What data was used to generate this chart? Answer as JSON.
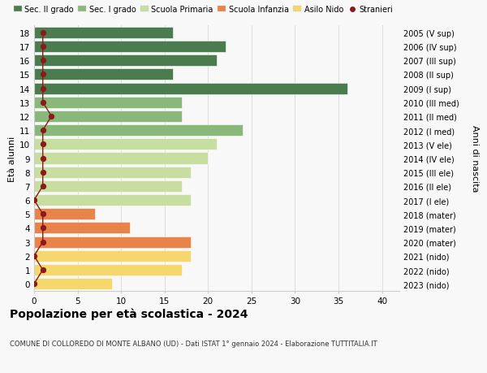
{
  "ages": [
    0,
    1,
    2,
    3,
    4,
    5,
    6,
    7,
    8,
    9,
    10,
    11,
    12,
    13,
    14,
    15,
    16,
    17,
    18
  ],
  "values": [
    9,
    17,
    18,
    18,
    11,
    7,
    18,
    17,
    18,
    20,
    21,
    24,
    17,
    17,
    36,
    16,
    21,
    22,
    16
  ],
  "stranieri": [
    0,
    1,
    0,
    1,
    1,
    1,
    0,
    1,
    1,
    1,
    1,
    1,
    2,
    1,
    1,
    1,
    1,
    1,
    1
  ],
  "bar_colors": [
    "#f5d76e",
    "#f5d76e",
    "#f5d76e",
    "#e8844a",
    "#e8844a",
    "#e8844a",
    "#c8dda0",
    "#c8dda0",
    "#c8dda0",
    "#c8dda0",
    "#c8dda0",
    "#8ab87a",
    "#8ab87a",
    "#8ab87a",
    "#4a7c4e",
    "#4a7c4e",
    "#4a7c4e",
    "#4a7c4e",
    "#4a7c4e"
  ],
  "right_labels": [
    "2023 (nido)",
    "2022 (nido)",
    "2021 (nido)",
    "2020 (mater)",
    "2019 (mater)",
    "2018 (mater)",
    "2017 (I ele)",
    "2016 (II ele)",
    "2015 (III ele)",
    "2014 (IV ele)",
    "2013 (V ele)",
    "2012 (I med)",
    "2011 (II med)",
    "2010 (III med)",
    "2009 (I sup)",
    "2008 (II sup)",
    "2007 (III sup)",
    "2006 (IV sup)",
    "2005 (V sup)"
  ],
  "ylabel_left": "Età alunni",
  "ylabel_right": "Anni di nascita",
  "title": "Popolazione per età scolastica - 2024",
  "subtitle": "COMUNE DI COLLOREDO DI MONTE ALBANO (UD) - Dati ISTAT 1° gennaio 2024 - Elaborazione TUTTITALIA.IT",
  "xlim": [
    0,
    42
  ],
  "background_color": "#f8f8f8",
  "grid_color": "#dddddd",
  "stranieri_color": "#8b1a1a",
  "legend_items": [
    {
      "label": "Sec. II grado",
      "color": "#4a7c4e"
    },
    {
      "label": "Sec. I grado",
      "color": "#8ab87a"
    },
    {
      "label": "Scuola Primaria",
      "color": "#c8dda0"
    },
    {
      "label": "Scuola Infanzia",
      "color": "#e8844a"
    },
    {
      "label": "Asilo Nido",
      "color": "#f5d76e"
    },
    {
      "label": "Stranieri",
      "color": "#8b1a1a"
    }
  ]
}
